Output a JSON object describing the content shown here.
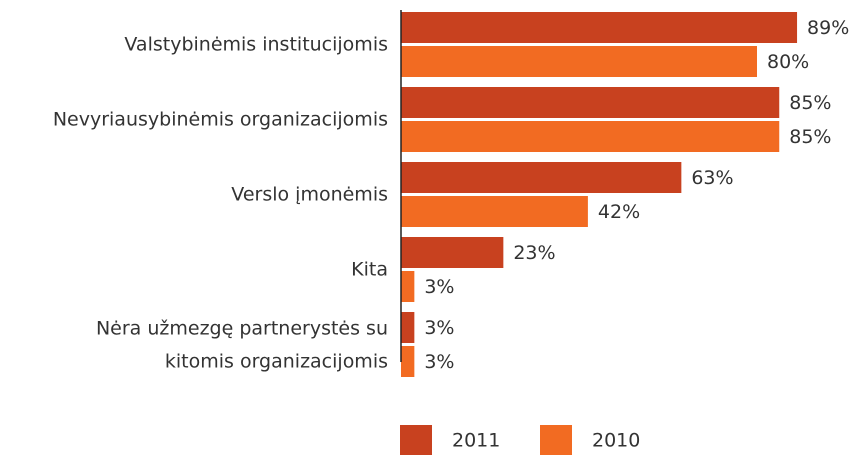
{
  "chart_data": {
    "type": "bar",
    "orientation": "horizontal",
    "categories": [
      "Valstybinėmis institucijomis",
      "Nevyriausybinėmis organizacijomis",
      "Verslo įmonėmis",
      "Kita",
      "Nėra užmezgę partnerystės su\nkitomis organizacijomis"
    ],
    "series": [
      {
        "name": "2011",
        "color": "#c8411f",
        "values": [
          89,
          85,
          63,
          23,
          3
        ],
        "value_labels": [
          "89%",
          "85%",
          "63%",
          "23%",
          "3%"
        ]
      },
      {
        "name": "2010",
        "color": "#f26b22",
        "values": [
          80,
          85,
          42,
          3,
          3
        ],
        "value_labels": [
          "80%",
          "85%",
          "42%",
          "3%",
          "3%"
        ]
      }
    ],
    "xlim": [
      0,
      100
    ],
    "legend": "bottom"
  }
}
